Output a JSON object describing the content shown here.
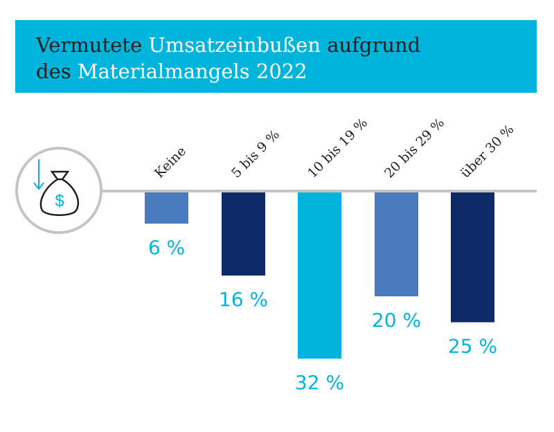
{
  "title": {
    "line1_dark": "Vermutete",
    "line1_light": "Umsatzeinbußen",
    "line1_dark2": "aufgrund",
    "line2_dark": "des",
    "line2_light": "Materialmangels 2022"
  },
  "colors": {
    "header": "#00b4dc",
    "title_dark": "#231f20",
    "label": "#00b4dc"
  },
  "icon": "money-bag-down-arrow-icon",
  "chart_data": {
    "type": "bar",
    "orientation": "downward",
    "categories": [
      "Keine",
      "5 bis 9 %",
      "10 bis 19 %",
      "20 bis 29 %",
      "über 30 %"
    ],
    "values": [
      6,
      16,
      32,
      20,
      25
    ],
    "labels": [
      "6 %",
      "16 %",
      "32 %",
      "20 %",
      "25 %"
    ],
    "colors": [
      "#4a7bbf",
      "#0f2a69",
      "#00b4dc",
      "#4a7bbf",
      "#0f2a69"
    ],
    "unit": "%",
    "grid": false
  }
}
